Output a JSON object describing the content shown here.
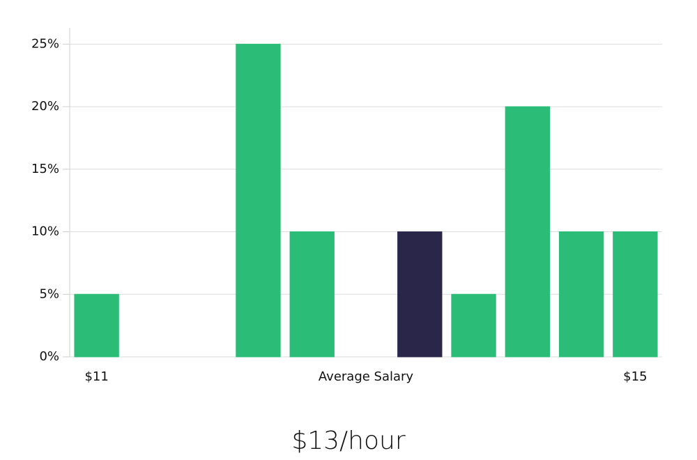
{
  "chart_data": {
    "type": "bar",
    "categories": [
      "$11",
      null,
      null,
      null,
      null,
      "Average Salary",
      null,
      null,
      null,
      null,
      "$15"
    ],
    "values": [
      5,
      0,
      0,
      25,
      10,
      0,
      10,
      5,
      20,
      10,
      10
    ],
    "colors": [
      "#2bbd77",
      "#2bbd77",
      "#2bbd77",
      "#2bbd77",
      "#2bbd77",
      "#2bbd77",
      "#29264a",
      "#2bbd77",
      "#2bbd77",
      "#2bbd77",
      "#2bbd77"
    ],
    "ylim": [
      0,
      26.3
    ],
    "yticks": [
      {
        "value": 0,
        "label": "0%"
      },
      {
        "value": 5,
        "label": "5%"
      },
      {
        "value": 10,
        "label": "10%"
      },
      {
        "value": 15,
        "label": "15%"
      },
      {
        "value": 20,
        "label": "20%"
      },
      {
        "value": 25,
        "label": "25%"
      }
    ],
    "grid": true,
    "annotation": "$13/hour"
  }
}
